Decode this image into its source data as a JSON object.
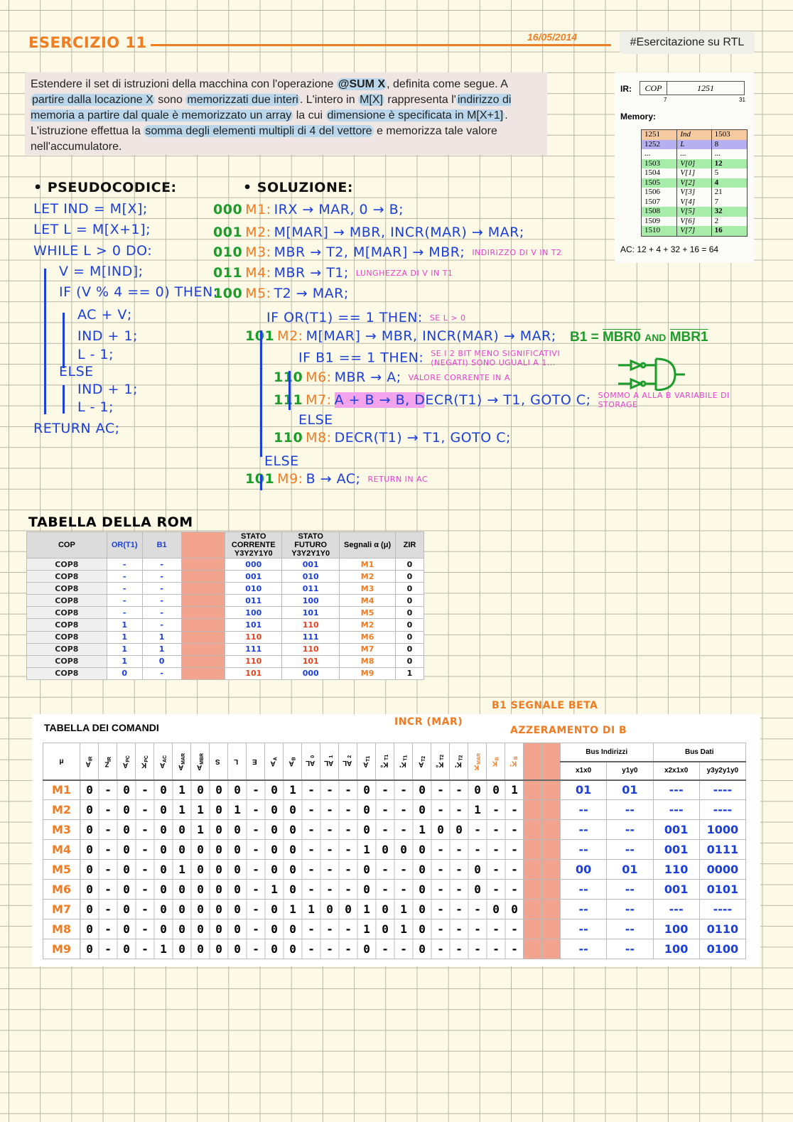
{
  "header": {
    "title": "ESERCIZIO 11",
    "date": "16/05/2014",
    "tag": "#Esercitazione su RTL"
  },
  "problem": {
    "segments": [
      {
        "t": "Estendere il set di istruzioni della macchina con l'operazione ",
        "h": false
      },
      {
        "t": "@SUM X",
        "h": true,
        "b": true
      },
      {
        "t": ", definita come segue. A ",
        "h": false
      },
      {
        "t": "partire dalla locazione X",
        "h": true
      },
      {
        "t": " sono ",
        "h": false
      },
      {
        "t": "memorizzati due interi",
        "h": true
      },
      {
        "t": ". L'intero in ",
        "h": false
      },
      {
        "t": "M[X]",
        "h": true
      },
      {
        "t": " rappresenta l'",
        "h": false
      },
      {
        "t": "indirizzo di memoria a partire dal quale è memorizzato un array",
        "h": true
      },
      {
        "t": " la cui ",
        "h": false
      },
      {
        "t": "dimensione è specificata in M[X+1]",
        "h": true
      },
      {
        "t": ". L'istruzione effettua la ",
        "h": false
      },
      {
        "t": "somma degli elementi multipli di 4 del vettore",
        "h": true
      },
      {
        "t": " e memorizza tale valore nell'accumulatore.",
        "h": false
      }
    ]
  },
  "memory": {
    "ir_label": "IR:",
    "ir_cop": "COP",
    "ir_addr": "1251",
    "bit_a": "7",
    "bit_b": "31",
    "label": "Memory:",
    "rows": [
      [
        "1251",
        "Ind",
        "1503",
        "orange"
      ],
      [
        "1252",
        "L",
        "8",
        "purple"
      ],
      [
        "...",
        "...",
        "...",
        ""
      ],
      [
        "1503",
        "V[0]",
        "12",
        "green"
      ],
      [
        "1504",
        "V[1]",
        "5",
        ""
      ],
      [
        "1505",
        "V[2]",
        "4",
        "green"
      ],
      [
        "1506",
        "V[3]",
        "21",
        ""
      ],
      [
        "1507",
        "V[4]",
        "7",
        ""
      ],
      [
        "1508",
        "V[5]",
        "32",
        "green"
      ],
      [
        "1509",
        "V[6]",
        "2",
        ""
      ],
      [
        "1510",
        "V[7]",
        "16",
        "green"
      ]
    ],
    "ac": "AC: 12 + 4 + 32 + 16 = 64"
  },
  "highlight_colors": {
    "orange": "#f6c9a0",
    "purple": "#b6b0f0",
    "green": "#a8ecaa",
    "problem": "#b9d6ea",
    "rom_pad": "#f3a48e"
  },
  "pseudocode": {
    "title": "• PSEUDOCODICE:",
    "lines": [
      "let IND = M[X];",
      "let L = M[X+1];",
      "WHILE L > 0 DO:",
      "V = M[IND];",
      "IF (V % 4 == 0) THEN:",
      "AC + V;",
      "IND + 1;",
      "L - 1;",
      "ELSE",
      "IND + 1;",
      "L - 1;",
      "RETURN AC;"
    ]
  },
  "solution": {
    "title": "• SOLUZIONE:",
    "lines": [
      {
        "state": "000",
        "mu": "M1:",
        "code": "IRx → MAR, 0 → B;",
        "note": ""
      },
      {
        "state": "001",
        "mu": "M2:",
        "code": "M[MAR] → MBR, INCR(MAR) → MAR;",
        "note": ""
      },
      {
        "state": "010",
        "mu": "M3:",
        "code": "MBR → T2, M[MAR] → MBR;",
        "note": "INDIRIZZO DI V IN T2"
      },
      {
        "state": "011",
        "mu": "M4:",
        "code": "MBR → T1;",
        "note": "LUNGHEZZA DI V IN T1"
      },
      {
        "state": "100",
        "mu": "M5:",
        "code": "T2 → MAR;",
        "note": ""
      },
      {
        "state": "",
        "mu": "",
        "code": "IF OR(T1) == 1 THEN:",
        "note": "SE L > 0"
      },
      {
        "state": "101",
        "mu": "M2:",
        "code": "M[MAR] → MBR, INCR(MAR) → MAR;",
        "note": ""
      },
      {
        "state": "",
        "mu": "",
        "code": "IF B1 == 1 THEN:",
        "note": "SE I 2 BIT MENO SIGNIFICATIVI (NEGATI) SONO UGUALI A 1..."
      },
      {
        "state": "110",
        "mu": "M6:",
        "code": "MBR → A;",
        "note": "VALORE CORRENTE IN A"
      },
      {
        "state": "111",
        "mu": "M7:",
        "code": "A + B → B, DECR(T1) → T1, GOTO C;",
        "note": "SOMMO A ALLA B VARIABILE DI STORAGE"
      },
      {
        "state": "",
        "mu": "",
        "code": "ELSE",
        "note": ""
      },
      {
        "state": "110",
        "mu": "M8:",
        "code": "DECR(T1) → T1, GOTO C;",
        "note": ""
      },
      {
        "state": "",
        "mu": "",
        "code": "ELSE",
        "note": ""
      },
      {
        "state": "101",
        "mu": "M9:",
        "code": "B → AC;",
        "note": "RETURN IN AC"
      }
    ],
    "beta": {
      "lhs": "B1 =",
      "t1": "MBR0",
      "and": "AND",
      "t2": "MBR1"
    }
  },
  "rom": {
    "title": "TABELLA DELLA ROM",
    "headers": [
      "COP",
      "OR(T1)",
      "B1",
      "",
      "STATO CORRENTE Y3Y2Y1Y0",
      "STATO FUTURO Y3Y2Y1Y0",
      "Segnali α (μ)",
      "ZIR"
    ],
    "rows": [
      [
        "COP8",
        "-",
        "-",
        "000",
        "001",
        "M1",
        "0"
      ],
      [
        "COP8",
        "-",
        "-",
        "001",
        "010",
        "M2",
        "0"
      ],
      [
        "COP8",
        "-",
        "-",
        "010",
        "011",
        "M3",
        "0"
      ],
      [
        "COP8",
        "-",
        "-",
        "011",
        "100",
        "M4",
        "0"
      ],
      [
        "COP8",
        "-",
        "-",
        "100",
        "101",
        "M5",
        "0"
      ],
      [
        "COP8",
        "1",
        "-",
        "101",
        "110",
        "M2",
        "0"
      ],
      [
        "COP8",
        "1",
        "1",
        "110",
        "111",
        "M6",
        "0"
      ],
      [
        "COP8",
        "1",
        "1",
        "111",
        "110",
        "M7",
        "0"
      ],
      [
        "COP8",
        "1",
        "0",
        "110",
        "101",
        "M8",
        "0"
      ],
      [
        "COP8",
        "0",
        "-",
        "101",
        "000",
        "M9",
        "1"
      ]
    ]
  },
  "commands": {
    "title": "TABELLA DEI COMANDI",
    "annotations": {
      "incr": "INCR (MAR)",
      "beta": "B1 SEGNALE BETA",
      "reset": "AZZERAMENTO DI B"
    },
    "signals": [
      [
        "A",
        "IR"
      ],
      [
        "Z",
        "IR"
      ],
      [
        "A",
        "PC"
      ],
      [
        "K",
        "PC"
      ],
      [
        "A",
        "AC"
      ],
      [
        "A",
        "MAR"
      ],
      [
        "A",
        "MBR"
      ],
      [
        "S",
        ""
      ],
      [
        "L",
        ""
      ],
      [
        "E",
        ""
      ],
      [
        "A",
        "A"
      ],
      [
        "A",
        "B"
      ],
      [
        "AL",
        "0"
      ],
      [
        "AL",
        "1"
      ],
      [
        "AL",
        "2"
      ],
      [
        "A",
        "T1"
      ],
      [
        "K°",
        "T1"
      ],
      [
        "K'",
        "T1"
      ],
      [
        "A",
        "T2"
      ],
      [
        "K°",
        "T2"
      ],
      [
        "K'",
        "T2"
      ],
      [
        "K",
        "MAR"
      ],
      [
        "K",
        "B"
      ],
      [
        "K'",
        "B"
      ]
    ],
    "mu_header": "μ",
    "bus_addr": "Bus Indirizzi",
    "bus_data": "Bus Dati",
    "bus_cols": [
      "x1x0",
      "y1y0",
      "x2x1x0",
      "y3y2y1y0"
    ],
    "rows": [
      {
        "mu": "M1",
        "v": "0-0-01000-01---0--0--001",
        "bus": [
          "01",
          "01",
          "---",
          "----"
        ]
      },
      {
        "mu": "M2",
        "v": "0-0-01101-00---0--0--1--",
        "bus": [
          "--",
          "--",
          "---",
          "----"
        ]
      },
      {
        "mu": "M3",
        "v": "0-0-00100-00---0--100---",
        "bus": [
          "--",
          "--",
          "001",
          "1000"
        ]
      },
      {
        "mu": "M4",
        "v": "0-0-00000-00---1000-----",
        "bus": [
          "--",
          "--",
          "001",
          "0111"
        ]
      },
      {
        "mu": "M5",
        "v": "0-0-01000-00---0--0--0--",
        "bus": [
          "00",
          "01",
          "110",
          "0000"
        ]
      },
      {
        "mu": "M6",
        "v": "0-0-00000-10---0--0--0--",
        "bus": [
          "--",
          "--",
          "001",
          "0101"
        ]
      },
      {
        "mu": "M7",
        "v": "0-0-00000-011001010---00",
        "bus": [
          "--",
          "--",
          "---",
          "----"
        ]
      },
      {
        "mu": "M8",
        "v": "0-0-00000-00---1010-----",
        "bus": [
          "--",
          "--",
          "100",
          "0110"
        ]
      },
      {
        "mu": "M9",
        "v": "0-0-10000-00---0--0-----",
        "bus": [
          "--",
          "--",
          "100",
          "0100"
        ]
      }
    ]
  }
}
